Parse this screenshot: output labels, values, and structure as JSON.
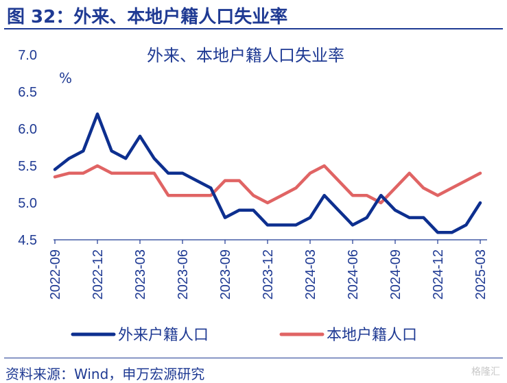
{
  "header": {
    "figure_title": "图 32：外来、本地户籍人口失业率"
  },
  "footer": {
    "source": "资料来源：Wind，申万宏源研究",
    "watermark": "格隆汇"
  },
  "colors": {
    "brand_blue": "#1f3a93",
    "series_local": "#e06464",
    "series_migrant": "#0d2f8f"
  },
  "chart_data": {
    "type": "line",
    "title": "外来、本地户籍人口失业率",
    "unit_label": "%",
    "ylim": [
      4.5,
      7.0
    ],
    "yticks": [
      "7.0",
      "6.5",
      "6.0",
      "5.5",
      "5.0",
      "4.5"
    ],
    "grid": false,
    "legend_position": "bottom",
    "x": [
      "2022-09",
      "2022-10",
      "2022-11",
      "2022-12",
      "2023-01",
      "2023-02",
      "2023-03",
      "2023-04",
      "2023-05",
      "2023-06",
      "2023-07",
      "2023-08",
      "2023-09",
      "2023-10",
      "2023-11",
      "2023-12",
      "2024-01",
      "2024-02",
      "2024-03",
      "2024-04",
      "2024-05",
      "2024-06",
      "2024-07",
      "2024-08",
      "2024-09",
      "2024-10",
      "2024-11",
      "2024-12",
      "2025-01",
      "2025-02",
      "2025-03"
    ],
    "xtick_labels": [
      "2022-09",
      "2022-12",
      "2023-03",
      "2023-06",
      "2023-09",
      "2023-12",
      "2024-03",
      "2024-06",
      "2024-09",
      "2024-12",
      "2025-03"
    ],
    "series": [
      {
        "name": "外来户籍人口",
        "color": "#0d2f8f",
        "values": [
          5.45,
          5.6,
          5.7,
          6.2,
          5.7,
          5.6,
          5.9,
          5.6,
          5.4,
          5.4,
          5.3,
          5.2,
          4.8,
          4.9,
          4.9,
          4.7,
          4.7,
          4.7,
          4.8,
          5.1,
          4.9,
          4.7,
          4.8,
          5.1,
          4.9,
          4.8,
          4.8,
          4.6,
          4.6,
          4.7,
          5.0
        ]
      },
      {
        "name": "本地户籍人口",
        "color": "#e06464",
        "values": [
          5.35,
          5.4,
          5.4,
          5.5,
          5.4,
          5.4,
          5.4,
          5.4,
          5.1,
          5.1,
          5.1,
          5.1,
          5.3,
          5.3,
          5.1,
          5.0,
          5.1,
          5.2,
          5.4,
          5.5,
          5.3,
          5.1,
          5.1,
          5.0,
          5.2,
          5.4,
          5.2,
          5.1,
          5.2,
          5.3,
          5.4
        ]
      }
    ]
  }
}
